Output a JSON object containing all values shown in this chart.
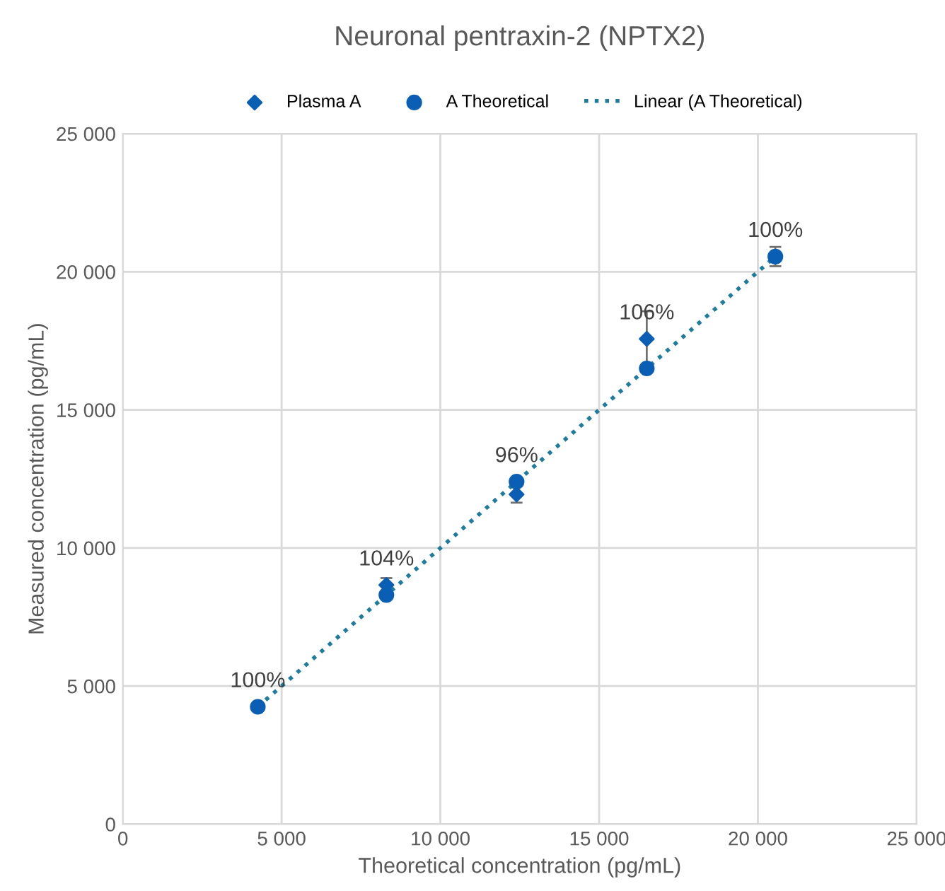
{
  "chart_data": {
    "type": "scatter",
    "title": "Neuronal pentraxin-2 (NPTX2)",
    "xlabel": "Theoretical concentration (pg/mL)",
    "ylabel": "Measured concentration (pg/mL)",
    "series": [
      {
        "name": "Plasma A",
        "marker": "diamond",
        "color": "#0a5fb4",
        "x": [
          8300,
          12400,
          16500
        ],
        "values": [
          8660,
          11940,
          17570
        ],
        "errors": [
          250,
          300,
          1000
        ]
      },
      {
        "name": "A Theoretical",
        "marker": "circle",
        "color": "#0a5fb4",
        "x": [
          4250,
          8300,
          12400,
          16500,
          20550
        ],
        "values": [
          4250,
          8300,
          12400,
          16500,
          20550
        ],
        "errors": [
          null,
          null,
          null,
          null,
          350
        ]
      },
      {
        "name": "Linear (A Theoretical)",
        "type": "line",
        "line_style": "dotted",
        "marker": "none",
        "color": "#1f7c9c",
        "x": [
          4250,
          20550
        ],
        "values": [
          4250,
          20550
        ]
      }
    ],
    "xlim": [
      0,
      25000
    ],
    "ylim": [
      0,
      25000
    ],
    "xticks": [
      0,
      {
        "value": 5000,
        "label": "5 000"
      },
      {
        "value": 10000,
        "label": "10 000"
      },
      {
        "value": 15000,
        "label": "15 000"
      },
      {
        "value": 20000,
        "label": "20 000"
      },
      {
        "value": 25000,
        "label": "25 000"
      }
    ],
    "yticks": [
      0,
      {
        "value": 5000,
        "label": "5 000"
      },
      {
        "value": 10000,
        "label": "10 000"
      },
      {
        "value": 15000,
        "label": "15 000"
      },
      {
        "value": 20000,
        "label": "20 000"
      },
      {
        "value": 25000,
        "label": "25 000"
      }
    ],
    "grid": true,
    "legend": "top",
    "annotations": [
      {
        "text": "100%",
        "x": 4250,
        "y": 4250
      },
      {
        "text": "104%",
        "x": 8300,
        "y": 8660
      },
      {
        "text": "96%",
        "x": 12400,
        "y": 12400
      },
      {
        "text": "106%",
        "x": 16500,
        "y": 17570
      },
      {
        "text": "100%",
        "x": 20550,
        "y": 20550
      }
    ]
  }
}
